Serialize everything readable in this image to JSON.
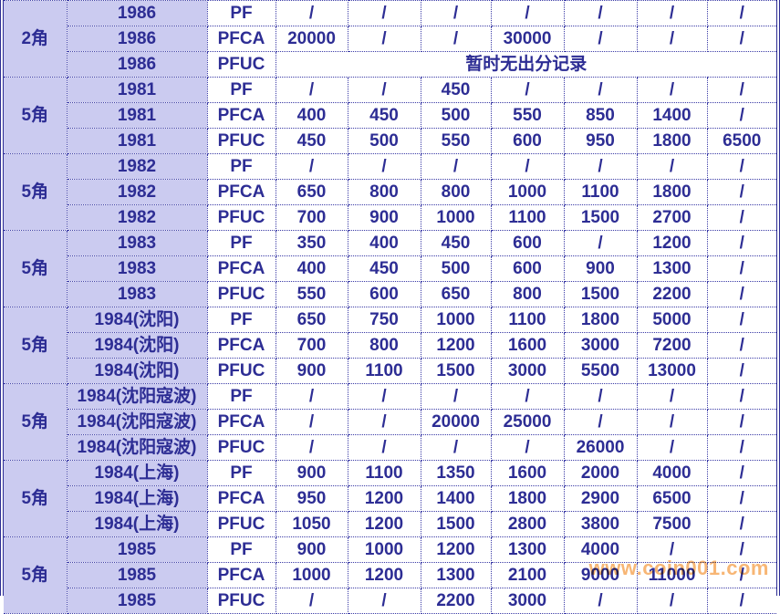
{
  "colors": {
    "text_navy": "#2d2d94",
    "cell_lavender": "#cbcbf0",
    "grid_border": "#3a3aa6",
    "highlight_green": "#00a651",
    "highlight_red": "#ff0000",
    "watermark_orange": "#f7b26e"
  },
  "watermark": {
    "text": "www.coin001.com"
  },
  "table": {
    "groups": [
      {
        "denomination": "2角",
        "rows": [
          {
            "year": "1986",
            "grade": "PF",
            "values": [
              "/",
              "/",
              "/",
              "/",
              "/",
              "/",
              "/"
            ]
          },
          {
            "year": "1986",
            "grade": "PFCA",
            "values": [
              {
                "text": "20000",
                "color": "green"
              },
              "/",
              "/",
              {
                "text": "30000",
                "color": "green"
              },
              "/",
              "/",
              "/"
            ]
          },
          {
            "year": "1986",
            "grade": "PFUC",
            "merged": true,
            "note": "暂时无出分记录"
          }
        ]
      },
      {
        "denomination": "5角",
        "rows": [
          {
            "year": "1981",
            "grade": "PF",
            "values": [
              "/",
              "/",
              "450",
              "/",
              "/",
              "/",
              "/"
            ]
          },
          {
            "year": "1981",
            "grade": "PFCA",
            "values": [
              "400",
              "450",
              "500",
              "550",
              "850",
              {
                "text": "1400",
                "color": "red"
              },
              "/"
            ]
          },
          {
            "year": "1981",
            "grade": "PFUC",
            "values": [
              "450",
              "500",
              "550",
              "600",
              "950",
              "1800",
              "6500"
            ]
          }
        ]
      },
      {
        "denomination": "5角",
        "rows": [
          {
            "year": "1982",
            "grade": "PF",
            "values": [
              "/",
              "/",
              "/",
              "/",
              "/",
              "/",
              "/"
            ]
          },
          {
            "year": "1982",
            "grade": "PFCA",
            "values": [
              "650",
              "800",
              "800",
              "1000",
              "1100",
              "1800",
              "/"
            ]
          },
          {
            "year": "1982",
            "grade": "PFUC",
            "values": [
              "700",
              "900",
              "1000",
              "1100",
              "1500",
              {
                "text": "2700",
                "color": "red"
              },
              "/"
            ]
          }
        ]
      },
      {
        "denomination": "5角",
        "rows": [
          {
            "year": "1983",
            "grade": "PF",
            "values": [
              "350",
              "400",
              "450",
              "600",
              "/",
              "1200",
              "/"
            ]
          },
          {
            "year": "1983",
            "grade": "PFCA",
            "values": [
              "400",
              "450",
              "500",
              "600",
              "900",
              "1300",
              "/"
            ]
          },
          {
            "year": "1983",
            "grade": "PFUC",
            "values": [
              "550",
              "600",
              "650",
              "800",
              "1500",
              "2200",
              "/"
            ]
          }
        ]
      },
      {
        "denomination": "5角",
        "rows": [
          {
            "year": "1984(沈阳)",
            "grade": "PF",
            "values": [
              "650",
              "750",
              "1000",
              "1100",
              "1800",
              "5000",
              "/"
            ]
          },
          {
            "year": "1984(沈阳)",
            "grade": "PFCA",
            "values": [
              "700",
              "800",
              "1200",
              "1600",
              "3000",
              "7200",
              "/"
            ]
          },
          {
            "year": "1984(沈阳)",
            "grade": "PFUC",
            "values": [
              "900",
              "1100",
              "1500",
              "3000",
              "5500",
              "13000",
              "/"
            ]
          }
        ]
      },
      {
        "denomination": "5角",
        "rows": [
          {
            "year": "1984(沈阳寇波)",
            "grade": "PF",
            "values": [
              "/",
              "/",
              "/",
              "/",
              "/",
              "/",
              "/"
            ]
          },
          {
            "year": "1984(沈阳寇波)",
            "grade": "PFCA",
            "values": [
              "/",
              "/",
              "20000",
              "25000",
              "/",
              "/",
              "/"
            ]
          },
          {
            "year": "1984(沈阳寇波)",
            "grade": "PFUC",
            "values": [
              "/",
              "/",
              "/",
              "/",
              "26000",
              "/",
              "/"
            ]
          }
        ]
      },
      {
        "denomination": "5角",
        "rows": [
          {
            "year": "1984(上海)",
            "grade": "PF",
            "values": [
              "900",
              "1100",
              "1350",
              "1600",
              "2000",
              "4000",
              "/"
            ]
          },
          {
            "year": "1984(上海)",
            "grade": "PFCA",
            "values": [
              "950",
              "1200",
              "1400",
              "1800",
              "2900",
              "6500",
              "/"
            ]
          },
          {
            "year": "1984(上海)",
            "grade": "PFUC",
            "values": [
              "1050",
              "1200",
              "1500",
              "2800",
              "3800",
              "7500",
              "/"
            ]
          }
        ]
      },
      {
        "denomination": "5角",
        "rows": [
          {
            "year": "1985",
            "grade": "PF",
            "values": [
              "900",
              "1000",
              "1200",
              {
                "text": "1300",
                "color": "green"
              },
              "4000",
              "/",
              "/"
            ]
          },
          {
            "year": "1985",
            "grade": "PFCA",
            "values": [
              "1000",
              "1200",
              "1300",
              "2100",
              "9000",
              "11000",
              "/"
            ]
          },
          {
            "year": "1985",
            "grade": "PFUC",
            "values": [
              "/",
              "/",
              "2200",
              "3000",
              "/",
              "/",
              "/"
            ]
          }
        ]
      }
    ]
  }
}
